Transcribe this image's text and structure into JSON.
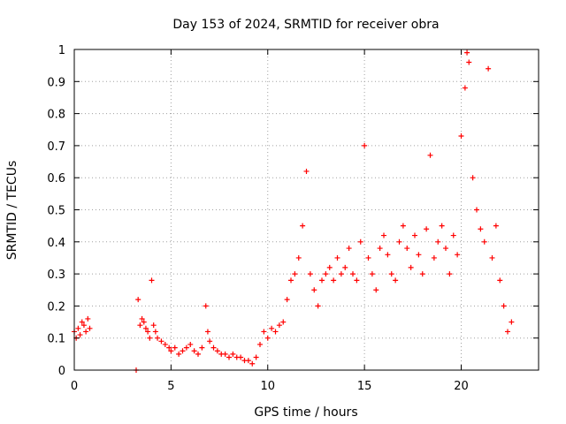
{
  "chart_data": {
    "type": "scatter",
    "title": "Day 153 of 2024, SRMTID for receiver obra",
    "xlabel": "GPS time / hours",
    "ylabel": "SRMTID / TECUs",
    "xlim": [
      0,
      24
    ],
    "ylim": [
      0,
      1
    ],
    "xticks": [
      0,
      5,
      10,
      15,
      20
    ],
    "xtick_labels": [
      "0",
      "5",
      "10",
      "15",
      "20"
    ],
    "yticks": [
      0,
      0.1,
      0.2,
      0.3,
      0.4,
      0.5,
      0.6,
      0.7,
      0.8,
      0.9,
      1
    ],
    "ytick_labels": [
      "0",
      "0.1",
      "0.2",
      "0.3",
      "0.4",
      "0.5",
      "0.6",
      "0.7",
      "0.8",
      "0.9",
      "1"
    ],
    "grid": true,
    "marker": "+",
    "color": "#ff0000",
    "series": [
      {
        "name": "SRMTID",
        "x": [
          0.0,
          0.1,
          0.2,
          0.3,
          0.4,
          0.5,
          0.6,
          0.7,
          0.8,
          3.2,
          3.3,
          3.4,
          3.5,
          3.6,
          3.7,
          3.8,
          3.9,
          4.0,
          4.1,
          4.2,
          4.3,
          4.5,
          4.7,
          4.9,
          5.0,
          5.2,
          5.4,
          5.6,
          5.8,
          6.0,
          6.2,
          6.4,
          6.6,
          6.8,
          6.9,
          7.0,
          7.2,
          7.4,
          7.6,
          7.8,
          8.0,
          8.2,
          8.4,
          8.6,
          8.8,
          9.0,
          9.2,
          9.4,
          9.6,
          9.8,
          10.0,
          10.2,
          10.4,
          10.6,
          10.8,
          11.0,
          11.2,
          11.4,
          11.6,
          11.8,
          12.0,
          12.2,
          12.4,
          12.6,
          12.8,
          13.0,
          13.2,
          13.4,
          13.6,
          13.8,
          14.0,
          14.2,
          14.4,
          14.6,
          14.8,
          15.0,
          15.2,
          15.4,
          15.6,
          15.8,
          16.0,
          16.2,
          16.4,
          16.6,
          16.8,
          17.0,
          17.2,
          17.4,
          17.6,
          17.8,
          18.0,
          18.2,
          18.4,
          18.6,
          18.8,
          19.0,
          19.2,
          19.4,
          19.6,
          19.8,
          20.0,
          20.2,
          20.3,
          20.4,
          20.6,
          20.8,
          21.0,
          21.2,
          21.4,
          21.6,
          21.8,
          22.0,
          22.2,
          22.4,
          22.6
        ],
        "y": [
          0.12,
          0.1,
          0.13,
          0.11,
          0.15,
          0.14,
          0.12,
          0.16,
          0.13,
          0.0,
          0.22,
          0.14,
          0.16,
          0.15,
          0.13,
          0.12,
          0.1,
          0.28,
          0.14,
          0.12,
          0.1,
          0.09,
          0.08,
          0.07,
          0.06,
          0.07,
          0.05,
          0.06,
          0.07,
          0.08,
          0.06,
          0.05,
          0.07,
          0.2,
          0.12,
          0.09,
          0.07,
          0.06,
          0.05,
          0.05,
          0.04,
          0.05,
          0.04,
          0.04,
          0.03,
          0.03,
          0.02,
          0.04,
          0.08,
          0.12,
          0.1,
          0.13,
          0.12,
          0.14,
          0.15,
          0.22,
          0.28,
          0.3,
          0.35,
          0.45,
          0.62,
          0.3,
          0.25,
          0.2,
          0.28,
          0.3,
          0.32,
          0.28,
          0.35,
          0.3,
          0.32,
          0.38,
          0.3,
          0.28,
          0.4,
          0.7,
          0.35,
          0.3,
          0.25,
          0.38,
          0.42,
          0.36,
          0.3,
          0.28,
          0.4,
          0.45,
          0.38,
          0.32,
          0.42,
          0.36,
          0.3,
          0.44,
          0.67,
          0.35,
          0.4,
          0.45,
          0.38,
          0.3,
          0.42,
          0.36,
          0.73,
          0.88,
          0.99,
          0.96,
          0.6,
          0.5,
          0.44,
          0.4,
          0.94,
          0.35,
          0.45,
          0.28,
          0.2,
          0.12,
          0.15
        ]
      }
    ]
  }
}
